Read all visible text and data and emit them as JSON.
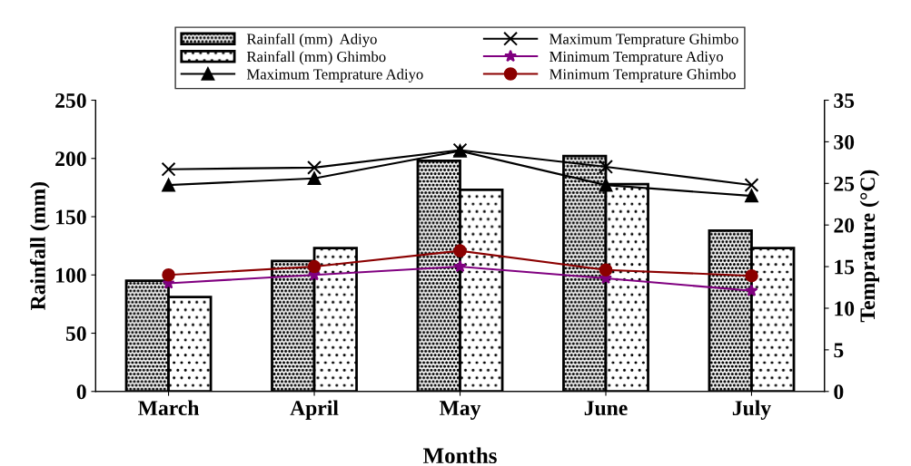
{
  "chart_data": {
    "type": "bar",
    "xlabel": "Months",
    "ylabel": "Rainfall (mm)",
    "y2label": "Temprature (°C)",
    "categories": [
      "March",
      "April",
      "May",
      "June",
      "July"
    ],
    "ylim": [
      0,
      250
    ],
    "yticks": [
      0,
      50,
      100,
      150,
      200,
      250
    ],
    "y2lim": [
      0,
      35
    ],
    "y2ticks": [
      0,
      5,
      10,
      15,
      20,
      25,
      30,
      35
    ],
    "legend": "top",
    "grid": false,
    "series": [
      {
        "name": "Rainfall (mm)  Adiyo",
        "color": "#000000",
        "values": [
          95,
          112,
          198,
          202,
          138
        ]
      },
      {
        "name": "Rainfall (mm) Ghimbo",
        "color": "#000000",
        "values": [
          81,
          123,
          173,
          178,
          123
        ]
      },
      {
        "name": "Maximum Temprature Adiyo",
        "type": "line",
        "axis": "y2",
        "color": "#000000",
        "marker": "triangle",
        "values": [
          24.8,
          25.6,
          28.9,
          24.8,
          23.5
        ]
      },
      {
        "name": "Maximum Temprature Ghimbo",
        "type": "line",
        "axis": "y2",
        "color": "#000000",
        "marker": "cross",
        "values": [
          26.7,
          26.9,
          29,
          27,
          24.8
        ]
      },
      {
        "name": "Minimum Temprature Adiyo",
        "type": "line",
        "axis": "y2",
        "color": "#800080",
        "marker": "star",
        "values": [
          13,
          14,
          15,
          13.6,
          12.1
        ]
      },
      {
        "name": "Minimum Temprature Ghimbo",
        "type": "line",
        "axis": "y2",
        "color": "#8b0000",
        "marker": "circle",
        "values": [
          14,
          15,
          16.9,
          14.6,
          13.9
        ]
      }
    ]
  }
}
